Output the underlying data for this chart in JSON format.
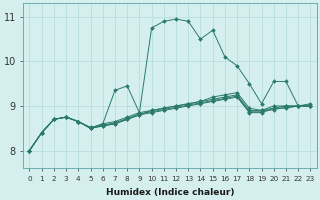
{
  "xlabel": "Humidex (Indice chaleur)",
  "bg_color": "#d5efef",
  "line_color": "#2a7a6a",
  "grid_color": "#b8dede",
  "xlim": [
    -0.5,
    23.5
  ],
  "ylim": [
    7.6,
    11.3
  ],
  "xticks": [
    0,
    1,
    2,
    3,
    4,
    5,
    6,
    7,
    8,
    9,
    10,
    11,
    12,
    13,
    14,
    15,
    16,
    17,
    18,
    19,
    20,
    21,
    22,
    23
  ],
  "yticks": [
    8,
    9,
    10,
    11
  ],
  "series": [
    [
      8.0,
      8.4,
      8.7,
      8.75,
      8.65,
      8.5,
      8.6,
      8.65,
      8.75,
      8.85,
      10.75,
      10.9,
      10.95,
      10.9,
      10.5,
      10.7,
      10.1,
      9.9,
      9.5,
      9.05,
      9.55,
      9.55,
      9.0,
      9.05
    ],
    [
      8.0,
      8.4,
      8.7,
      8.75,
      8.65,
      8.5,
      8.6,
      9.35,
      9.45,
      8.85,
      8.9,
      8.95,
      9.0,
      9.05,
      9.1,
      9.2,
      9.25,
      9.3,
      8.95,
      8.9,
      9.0,
      9.0,
      9.0,
      9.0
    ],
    [
      8.0,
      8.4,
      8.7,
      8.75,
      8.65,
      8.5,
      8.55,
      8.6,
      8.7,
      8.8,
      8.85,
      8.9,
      8.95,
      9.0,
      9.05,
      9.1,
      9.15,
      9.2,
      8.85,
      8.85,
      8.95,
      8.95,
      9.0,
      9.0
    ],
    [
      8.0,
      8.4,
      8.7,
      8.75,
      8.65,
      8.5,
      8.55,
      8.6,
      8.7,
      8.8,
      8.9,
      8.95,
      9.0,
      9.05,
      9.1,
      9.15,
      9.2,
      9.25,
      8.9,
      8.9,
      8.95,
      9.0,
      9.0,
      9.0
    ],
    [
      8.0,
      8.4,
      8.7,
      8.75,
      8.65,
      8.52,
      8.57,
      8.62,
      8.72,
      8.82,
      8.87,
      8.92,
      8.97,
      9.02,
      9.07,
      9.12,
      9.17,
      9.22,
      8.87,
      8.87,
      8.92,
      8.97,
      9.0,
      9.0
    ]
  ]
}
